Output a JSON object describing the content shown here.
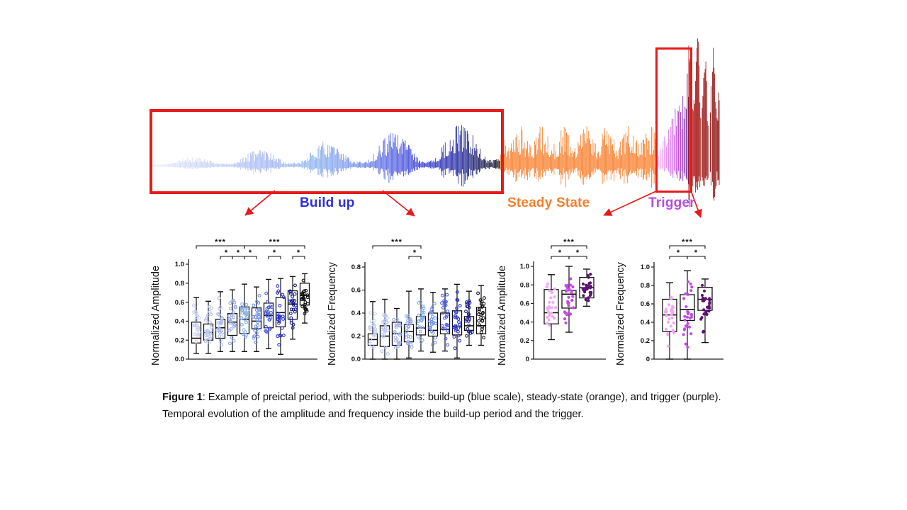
{
  "figure": {
    "regions": {
      "build_up": {
        "label": "Build up",
        "color": "#2f2fe0"
      },
      "steady_state": {
        "label": "Steady State",
        "color": "#f87e2b"
      },
      "trigger": {
        "label": "Trigger",
        "color": "#b54ce0"
      }
    },
    "annotation_color": "#e61a1a"
  },
  "caption": {
    "label": "Figure 1",
    "text": ": Example of preictal period, with the subperiods: build-up (blue scale), steady-state (orange), and trigger (purple). Temporal evolution of the amplitude and frequency inside the build-up period and the trigger."
  },
  "chart_data": [
    {
      "type": "line",
      "id": "signal-trace",
      "description": "Preictal spiking signal: amplitude grows during build-up (light blue to black), stays constant during steady state (orange), ramps up in trigger (light to dark purple), maximal after trigger (dark red)",
      "segments": [
        {
          "name": "build-up",
          "relative_length": 0.615,
          "amplitude_start": 0.05,
          "amplitude_end": 0.45,
          "color_stops": [
            "#e6eafb",
            "#d2daf8",
            "#bcc8f5",
            "#a4b4f2",
            "#8fb6ee",
            "#7e9bec",
            "#5a6ae6",
            "#3138d6",
            "#1d2299",
            "#0d0d12"
          ]
        },
        {
          "name": "steady-state",
          "relative_length": 0.27,
          "amplitude_start": 0.4,
          "amplitude_end": 0.4,
          "color_stops": [
            "#f87e2b"
          ]
        },
        {
          "name": "trigger",
          "relative_length": 0.06,
          "amplitude_start": 0.15,
          "amplitude_end": 1.0,
          "color_stops": [
            "#f6c9f8",
            "#eda4f4",
            "#dd75ee",
            "#c44ae6",
            "#9426c0",
            "#3f1058"
          ]
        },
        {
          "name": "post-trigger",
          "relative_length": 0.055,
          "amplitude_start": 1.1,
          "amplitude_end": 1.5,
          "color_stops": [
            "#ae1414",
            "#9a1010",
            "#8b0d0d"
          ]
        }
      ]
    },
    {
      "type": "boxplot",
      "id": "amplitude-buildup",
      "period": "Build up",
      "ylabel": "Normalized Amplitude",
      "ylim": [
        0,
        1.0
      ],
      "yticks": [
        "0.0",
        "0.2",
        "0.4",
        "0.6",
        "0.8",
        "1.0"
      ],
      "ytick_values": [
        0,
        0.2,
        0.4,
        0.6,
        0.8,
        1.0
      ],
      "group_colors": [
        "#c9d2f2",
        "#b9c5f0",
        "#a8b8ee",
        "#96aaec",
        "#83aeea",
        "#7390e8",
        "#4c5ce0",
        "#2a32d0",
        "#191c90",
        "#101014"
      ],
      "groups": [
        {
          "whisker_low": 0.06,
          "q1": 0.17,
          "median": 0.22,
          "q3": 0.39,
          "whisker_high": 0.65
        },
        {
          "whisker_low": 0.06,
          "q1": 0.2,
          "median": 0.28,
          "q3": 0.37,
          "whisker_high": 0.61
        },
        {
          "whisker_low": 0.08,
          "q1": 0.22,
          "median": 0.33,
          "q3": 0.42,
          "whisker_high": 0.71
        },
        {
          "whisker_low": 0.08,
          "q1": 0.25,
          "median": 0.39,
          "q3": 0.48,
          "whisker_high": 0.73
        },
        {
          "whisker_low": 0.08,
          "q1": 0.27,
          "median": 0.42,
          "q3": 0.55,
          "whisker_high": 0.79
        },
        {
          "whisker_low": 0.08,
          "q1": 0.32,
          "median": 0.4,
          "q3": 0.54,
          "whisker_high": 0.76
        },
        {
          "whisker_low": 0.11,
          "q1": 0.33,
          "median": 0.46,
          "q3": 0.59,
          "whisker_high": 0.84
        },
        {
          "whisker_low": 0.05,
          "q1": 0.34,
          "median": 0.49,
          "q3": 0.65,
          "whisker_high": 0.85
        },
        {
          "whisker_low": 0.21,
          "q1": 0.42,
          "median": 0.58,
          "q3": 0.72,
          "whisker_high": 0.87
        },
        {
          "whisker_low": 0.38,
          "q1": 0.57,
          "median": 0.67,
          "q3": 0.8,
          "whisker_high": 0.9
        }
      ],
      "significance": [
        {
          "groups": [
            1,
            5
          ],
          "label": "***",
          "row": 0
        },
        {
          "groups": [
            5,
            10
          ],
          "label": "***",
          "row": 0
        },
        {
          "groups": [
            3,
            4
          ],
          "label": "*",
          "row": 1
        },
        {
          "groups": [
            4,
            5
          ],
          "label": "*",
          "row": 1
        },
        {
          "groups": [
            5,
            6
          ],
          "label": "*",
          "row": 1
        },
        {
          "groups": [
            7,
            8
          ],
          "label": "*",
          "row": 1
        },
        {
          "groups": [
            9,
            10
          ],
          "label": "*",
          "row": 1
        }
      ]
    },
    {
      "type": "boxplot",
      "id": "frequency-buildup",
      "period": "Build up",
      "ylabel": "Normalized Frequency",
      "ylim": [
        0,
        0.8
      ],
      "yticks": [
        "0.0",
        "0.2",
        "0.4",
        "0.6",
        "0.8"
      ],
      "ytick_values": [
        0,
        0.2,
        0.4,
        0.6,
        0.8
      ],
      "group_colors": [
        "#c9d2f2",
        "#b9c5f0",
        "#a8b8ee",
        "#96aaec",
        "#83aeea",
        "#7390e8",
        "#4c5ce0",
        "#2a32d0",
        "#191c90",
        "#101014"
      ],
      "groups": [
        {
          "whisker_low": 0.0,
          "q1": 0.12,
          "median": 0.17,
          "q3": 0.22,
          "whisker_high": 0.5
        },
        {
          "whisker_low": 0.0,
          "q1": 0.11,
          "median": 0.2,
          "q3": 0.29,
          "whisker_high": 0.52
        },
        {
          "whisker_low": 0.0,
          "q1": 0.12,
          "median": 0.22,
          "q3": 0.32,
          "whisker_high": 0.44
        },
        {
          "whisker_low": 0.01,
          "q1": 0.15,
          "median": 0.24,
          "q3": 0.3,
          "whisker_high": 0.59
        },
        {
          "whisker_low": 0.07,
          "q1": 0.21,
          "median": 0.27,
          "q3": 0.37,
          "whisker_high": 0.61
        },
        {
          "whisker_low": 0.06,
          "q1": 0.2,
          "median": 0.25,
          "q3": 0.4,
          "whisker_high": 0.58
        },
        {
          "whisker_low": 0.07,
          "q1": 0.22,
          "median": 0.26,
          "q3": 0.4,
          "whisker_high": 0.61
        },
        {
          "whisker_low": 0.01,
          "q1": 0.21,
          "median": 0.28,
          "q3": 0.42,
          "whisker_high": 0.65
        },
        {
          "whisker_low": 0.12,
          "q1": 0.25,
          "median": 0.29,
          "q3": 0.37,
          "whisker_high": 0.59
        },
        {
          "whisker_low": 0.12,
          "q1": 0.22,
          "median": 0.29,
          "q3": 0.45,
          "whisker_high": 0.64
        }
      ],
      "significance": [
        {
          "groups": [
            1,
            5
          ],
          "label": "***",
          "row": 0
        },
        {
          "groups": [
            4,
            5
          ],
          "label": "*",
          "row": 1
        }
      ]
    },
    {
      "type": "boxplot",
      "id": "amplitude-trigger",
      "period": "Trigger",
      "ylabel": "Normalized Amplitude",
      "ylim": [
        0,
        1.0
      ],
      "yticks": [
        "0",
        "0.2",
        "0.4",
        "0.6",
        "0.8",
        "1.0"
      ],
      "ytick_values": [
        0,
        0.2,
        0.4,
        0.6,
        0.8,
        1.0
      ],
      "group_colors": [
        "#f0a9f2",
        "#c44ae6",
        "#5c1270"
      ],
      "groups": [
        {
          "whisker_low": 0.21,
          "q1": 0.38,
          "median": 0.5,
          "q3": 0.75,
          "whisker_high": 0.91
        },
        {
          "whisker_low": 0.29,
          "q1": 0.55,
          "median": 0.7,
          "q3": 0.74,
          "whisker_high": 1.0
        },
        {
          "whisker_low": 0.57,
          "q1": 0.66,
          "median": 0.77,
          "q3": 0.88,
          "whisker_high": 0.97
        }
      ],
      "significance": [
        {
          "groups": [
            1,
            3
          ],
          "label": "***",
          "row": 0
        },
        {
          "groups": [
            1,
            2
          ],
          "label": "*",
          "row": 1
        },
        {
          "groups": [
            2,
            3
          ],
          "label": "*",
          "row": 1
        }
      ]
    },
    {
      "type": "boxplot",
      "id": "frequency-trigger",
      "period": "Trigger",
      "ylabel": "Normalized Frequency",
      "ylim": [
        0,
        1.0
      ],
      "yticks": [
        "0",
        "0.2",
        "0.4",
        "0.6",
        "0.8",
        "1.0"
      ],
      "ytick_values": [
        0,
        0.2,
        0.4,
        0.6,
        0.8,
        1.0
      ],
      "group_colors": [
        "#f0a9f2",
        "#c44ae6",
        "#5c1270"
      ],
      "groups": [
        {
          "whisker_low": 0.0,
          "q1": 0.3,
          "median": 0.48,
          "q3": 0.65,
          "whisker_high": 0.83
        },
        {
          "whisker_low": 0.0,
          "q1": 0.42,
          "median": 0.54,
          "q3": 0.7,
          "whisker_high": 0.96
        },
        {
          "whisker_low": 0.18,
          "q1": 0.53,
          "median": 0.65,
          "q3": 0.78,
          "whisker_high": 0.87
        }
      ],
      "significance": [
        {
          "groups": [
            1,
            3
          ],
          "label": "***",
          "row": 0
        },
        {
          "groups": [
            1,
            2
          ],
          "label": "*",
          "row": 1
        },
        {
          "groups": [
            2,
            3
          ],
          "label": "*",
          "row": 1
        }
      ]
    }
  ]
}
